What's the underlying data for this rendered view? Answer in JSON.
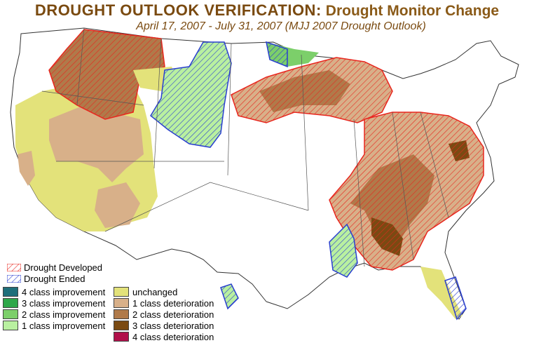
{
  "header": {
    "title_main": "DROUGHT OUTLOOK VERIFICATION:",
    "title_sub": "Drought Monitor Change",
    "subtitle": "April 17, 2007 - July 31, 2007 (MJJ 2007 Drought Outlook)"
  },
  "legend": {
    "hatch": [
      {
        "label": "Drought Developed",
        "color": "#e8261e"
      },
      {
        "label": "Drought Ended",
        "color": "#2a3fd0"
      }
    ],
    "improvement": [
      {
        "label": "4 class improvement",
        "color": "#1f6f7a"
      },
      {
        "label": "3 class improvement",
        "color": "#2fa84a"
      },
      {
        "label": "2 class improvement",
        "color": "#7ccf6a"
      },
      {
        "label": "1 class improvement",
        "color": "#b9f0a0"
      }
    ],
    "deterioration": [
      {
        "label": "unchanged",
        "color": "#e3e27a"
      },
      {
        "label": "1 class deterioration",
        "color": "#d8b089"
      },
      {
        "label": "2 class deterioration",
        "color": "#b07a4a"
      },
      {
        "label": "3 class deterioration",
        "color": "#7a4a12"
      },
      {
        "label": "4 class deterioration",
        "color": "#b0104a"
      }
    ]
  }
}
